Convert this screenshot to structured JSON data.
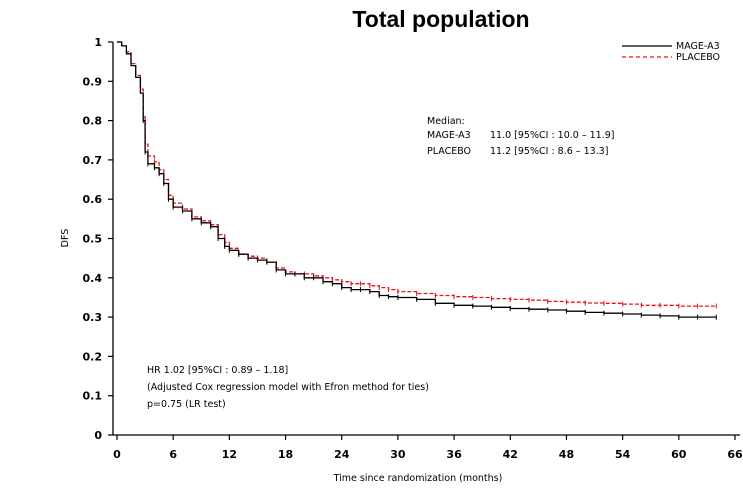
{
  "chart_data": {
    "type": "line",
    "title": "Total population",
    "xlabel": "Time since randomization (months)",
    "ylabel": "DFS",
    "xlim": [
      0,
      66
    ],
    "ylim": [
      0,
      1
    ],
    "x_ticks": [
      0,
      6,
      12,
      18,
      24,
      30,
      36,
      42,
      48,
      54,
      60,
      66
    ],
    "y_ticks": [
      0,
      0.1,
      0.2,
      0.3,
      0.4,
      0.5,
      0.6,
      0.7,
      0.8,
      0.9,
      1
    ],
    "y_tick_labels": [
      "0",
      "0.1",
      "0.2",
      "0.3",
      "0.4",
      "0.5",
      "0.6",
      "0.7",
      "0.8",
      "0.9",
      "1"
    ],
    "grid": false,
    "legend_position": "top-right",
    "series": [
      {
        "name": "MAGE-A3",
        "color": "#000000",
        "line_style": "solid",
        "x": [
          0,
          0.5,
          1,
          1.5,
          2,
          2.5,
          2.8,
          3.0,
          3.3,
          4,
          4.5,
          5,
          5.5,
          6,
          7,
          8,
          9,
          10,
          10.8,
          11.5,
          12,
          13,
          14,
          15,
          16,
          17,
          18,
          19,
          20,
          21,
          22,
          23,
          24,
          25,
          26,
          27,
          28,
          29,
          30,
          32,
          34,
          36,
          38,
          40,
          42,
          44,
          46,
          48,
          50,
          52,
          54,
          56,
          58,
          60,
          62,
          64
        ],
        "y": [
          1.0,
          0.99,
          0.97,
          0.94,
          0.91,
          0.87,
          0.8,
          0.72,
          0.69,
          0.68,
          0.665,
          0.64,
          0.6,
          0.58,
          0.57,
          0.55,
          0.54,
          0.53,
          0.5,
          0.48,
          0.47,
          0.46,
          0.45,
          0.445,
          0.44,
          0.42,
          0.41,
          0.41,
          0.4,
          0.4,
          0.39,
          0.385,
          0.375,
          0.37,
          0.37,
          0.365,
          0.355,
          0.352,
          0.35,
          0.345,
          0.335,
          0.33,
          0.328,
          0.325,
          0.322,
          0.32,
          0.318,
          0.315,
          0.312,
          0.31,
          0.308,
          0.305,
          0.303,
          0.3,
          0.3,
          0.3
        ]
      },
      {
        "name": "PLACEBO",
        "color": "#e8141c",
        "line_style": "dashed",
        "x": [
          0,
          0.5,
          1,
          1.5,
          2,
          2.5,
          2.8,
          3.0,
          3.3,
          4,
          4.5,
          5,
          5.5,
          6,
          7,
          8,
          9,
          10,
          10.8,
          11.5,
          12,
          13,
          14,
          15,
          16,
          17,
          18,
          19,
          20,
          21,
          22,
          23,
          24,
          25,
          26,
          27,
          28,
          29,
          30,
          32,
          34,
          36,
          38,
          40,
          42,
          44,
          46,
          48,
          50,
          52,
          54,
          56,
          58,
          60,
          62,
          64
        ],
        "y": [
          1.0,
          0.99,
          0.975,
          0.945,
          0.915,
          0.88,
          0.81,
          0.74,
          0.71,
          0.695,
          0.675,
          0.65,
          0.61,
          0.59,
          0.575,
          0.555,
          0.545,
          0.535,
          0.51,
          0.49,
          0.475,
          0.46,
          0.455,
          0.45,
          0.44,
          0.425,
          0.415,
          0.41,
          0.41,
          0.405,
          0.4,
          0.395,
          0.39,
          0.385,
          0.385,
          0.38,
          0.375,
          0.37,
          0.365,
          0.36,
          0.355,
          0.352,
          0.35,
          0.347,
          0.345,
          0.343,
          0.34,
          0.338,
          0.336,
          0.335,
          0.333,
          0.33,
          0.33,
          0.328,
          0.328,
          0.328
        ]
      }
    ],
    "annotations": {
      "median_heading": "Median:",
      "median_rows": [
        {
          "arm": "MAGE-A3",
          "value": "11.0 [95%CI : 10.0 – 11.9]"
        },
        {
          "arm": "PLACEBO",
          "value": "11.2 [95%CI : 8.6 – 13.3]"
        }
      ],
      "hr_lines": [
        "HR 1.02 [95%CI : 0.89 – 1.18]",
        "(Adjusted Cox regression model with Efron method for ties)",
        "p=0.75    (LR test)"
      ]
    }
  }
}
